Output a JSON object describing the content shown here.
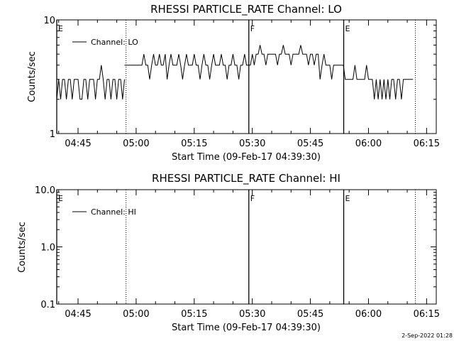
{
  "chart_data": [
    {
      "type": "line",
      "title": "RHESSI PARTICLE_RATE Channel: LO",
      "xlabel": "Start Time (09-Feb-17 04:39:30)",
      "ylabel": "Counts/sec",
      "yscale": "log",
      "ylim": [
        1,
        10
      ],
      "ytick_labels": [
        "1",
        "10"
      ],
      "xlim_minutes": [
        0,
        98
      ],
      "xtick_labels": [
        "04:45",
        "05:00",
        "05:15",
        "05:30",
        "05:45",
        "06:00",
        "06:15"
      ],
      "legend": [
        "Channel: LO"
      ],
      "legend_location": "top-left",
      "markers": [
        {
          "label": "E",
          "minute": 0,
          "style": "solid"
        },
        {
          "label": "",
          "minute": 17.9,
          "style": "dotted"
        },
        {
          "label": "F",
          "minute": 49.6,
          "style": "solid"
        },
        {
          "label": "E",
          "minute": 74.1,
          "style": "solid"
        },
        {
          "label": "",
          "minute": 92.6,
          "style": "dotted"
        }
      ],
      "series": [
        {
          "name": "Channel: LO",
          "segments": [
            {
              "x": [
                0.0,
                0.5,
                1.0,
                1.5,
                2.0,
                2.5,
                3.0,
                3.5,
                4.0,
                4.5,
                5.0,
                5.5,
                6.0,
                6.5,
                7.0,
                7.5,
                8.0,
                8.5,
                9.0,
                9.5,
                10.0,
                10.5,
                11.0,
                11.5,
                12.0,
                12.5,
                13.0,
                13.5,
                14.0,
                14.5,
                15.0,
                15.5,
                16.0,
                16.5,
                17.0,
                17.5
              ],
              "y": [
                2,
                3,
                2,
                3,
                3,
                2,
                3,
                3,
                2,
                3,
                3,
                3,
                2,
                2,
                3,
                3,
                2,
                3,
                3,
                3,
                2,
                3,
                3,
                4,
                3,
                2,
                3,
                3,
                2,
                3,
                3,
                2,
                3,
                3,
                2,
                3
              ]
            },
            {
              "x": [
                17.5,
                18.0,
                19.0,
                20.0,
                21.0,
                22.0,
                22.5,
                23.0,
                23.5,
                24.0,
                24.5,
                25.0,
                25.5,
                26.0,
                26.5,
                27.0,
                27.5,
                28.0,
                28.5,
                29.0,
                29.5,
                30.0,
                30.5,
                31.0,
                31.5,
                32.0,
                32.5,
                33.0,
                33.5,
                34.0,
                34.5,
                35.0,
                35.5,
                36.0,
                36.5,
                37.0,
                37.5,
                38.0,
                38.5,
                39.0,
                39.5,
                40.0,
                40.5,
                41.0,
                41.5,
                42.0,
                42.5,
                43.0,
                43.5,
                44.0,
                44.5,
                45.0,
                45.5,
                46.0,
                46.5,
                47.0,
                47.5,
                48.0,
                48.5,
                49.0,
                49.5,
                50.0,
                50.5,
                51.0,
                51.5,
                52.0,
                52.5,
                53.0,
                53.5,
                54.0,
                54.5,
                55.0,
                55.5,
                56.0,
                56.5,
                57.0,
                57.5,
                58.0,
                58.5,
                59.0,
                59.5,
                60.0,
                60.5,
                61.0,
                61.5,
                62.0,
                62.5,
                63.0,
                63.5,
                64.0,
                64.5,
                65.0,
                65.5,
                66.0,
                66.5,
                67.0,
                67.5,
                68.0,
                68.5,
                69.0,
                69.5,
                70.0,
                70.5,
                71.0,
                71.5,
                72.0,
                72.5,
                73.0,
                73.5,
                74.0
              ],
              "y": [
                4,
                4,
                4,
                4,
                4,
                4,
                5,
                4,
                4,
                3,
                4,
                5,
                4,
                4,
                5,
                4,
                4,
                5,
                3,
                4,
                5,
                4,
                4,
                4,
                5,
                4,
                3,
                4,
                5,
                4,
                4,
                4,
                5,
                4,
                4,
                3,
                4,
                5,
                4,
                4,
                3,
                4,
                5,
                4,
                4,
                4,
                5,
                4,
                4,
                3,
                4,
                4,
                5,
                4,
                4,
                3,
                4,
                4,
                5,
                4,
                4,
                4,
                5,
                4,
                5,
                5,
                6,
                5,
                5,
                4,
                5,
                5,
                5,
                5,
                5,
                4,
                5,
                5,
                6,
                5,
                5,
                5,
                4,
                5,
                5,
                5,
                5,
                6,
                5,
                5,
                5,
                4,
                5,
                5,
                4,
                5,
                5,
                3,
                4,
                5,
                4,
                4,
                4,
                3,
                4,
                4,
                4,
                4,
                4,
                4
              ]
            },
            {
              "x": [
                74.0,
                74.5,
                75.0,
                75.5,
                76.0,
                76.5,
                77.0,
                77.5,
                78.0,
                78.5,
                79.0,
                79.5,
                80.0,
                80.5,
                81.0,
                81.5,
                82.0,
                82.5,
                83.0,
                83.5,
                84.0,
                84.5,
                85.0,
                85.5,
                86.0,
                86.5,
                87.0,
                87.5,
                88.0,
                88.5,
                89.0,
                89.5,
                90.0,
                90.5,
                91.0,
                91.5,
                92.0
              ],
              "y": [
                4,
                3,
                3,
                3,
                3,
                3,
                4,
                3,
                3,
                3,
                3,
                3,
                4,
                3,
                3,
                3,
                2,
                3,
                2,
                3,
                2,
                3,
                2,
                3,
                2,
                3,
                3,
                2,
                3,
                3,
                2,
                3,
                3,
                3,
                3,
                3,
                3
              ]
            }
          ]
        }
      ]
    },
    {
      "type": "line",
      "title": "RHESSI PARTICLE_RATE Channel: HI",
      "xlabel": "Start Time (09-Feb-17 04:39:30)",
      "ylabel": "Counts/sec",
      "yscale": "log",
      "ylim": [
        0.1,
        10
      ],
      "ytick_labels": [
        "0.1",
        "1.0",
        "10.0"
      ],
      "xlim_minutes": [
        0,
        98
      ],
      "xtick_labels": [
        "04:45",
        "05:00",
        "05:15",
        "05:30",
        "05:45",
        "06:00",
        "06:15"
      ],
      "legend": [
        "Channel: HI"
      ],
      "legend_location": "top-left",
      "markers": [
        {
          "label": "E",
          "minute": 0,
          "style": "solid"
        },
        {
          "label": "",
          "minute": 17.9,
          "style": "dotted"
        },
        {
          "label": "F",
          "minute": 49.6,
          "style": "solid"
        },
        {
          "label": "E",
          "minute": 74.1,
          "style": "solid"
        },
        {
          "label": "",
          "minute": 92.6,
          "style": "dotted"
        }
      ],
      "series": [
        {
          "name": "Channel: HI",
          "segments": []
        }
      ]
    }
  ],
  "footer": "2-Sep-2022 01:28"
}
